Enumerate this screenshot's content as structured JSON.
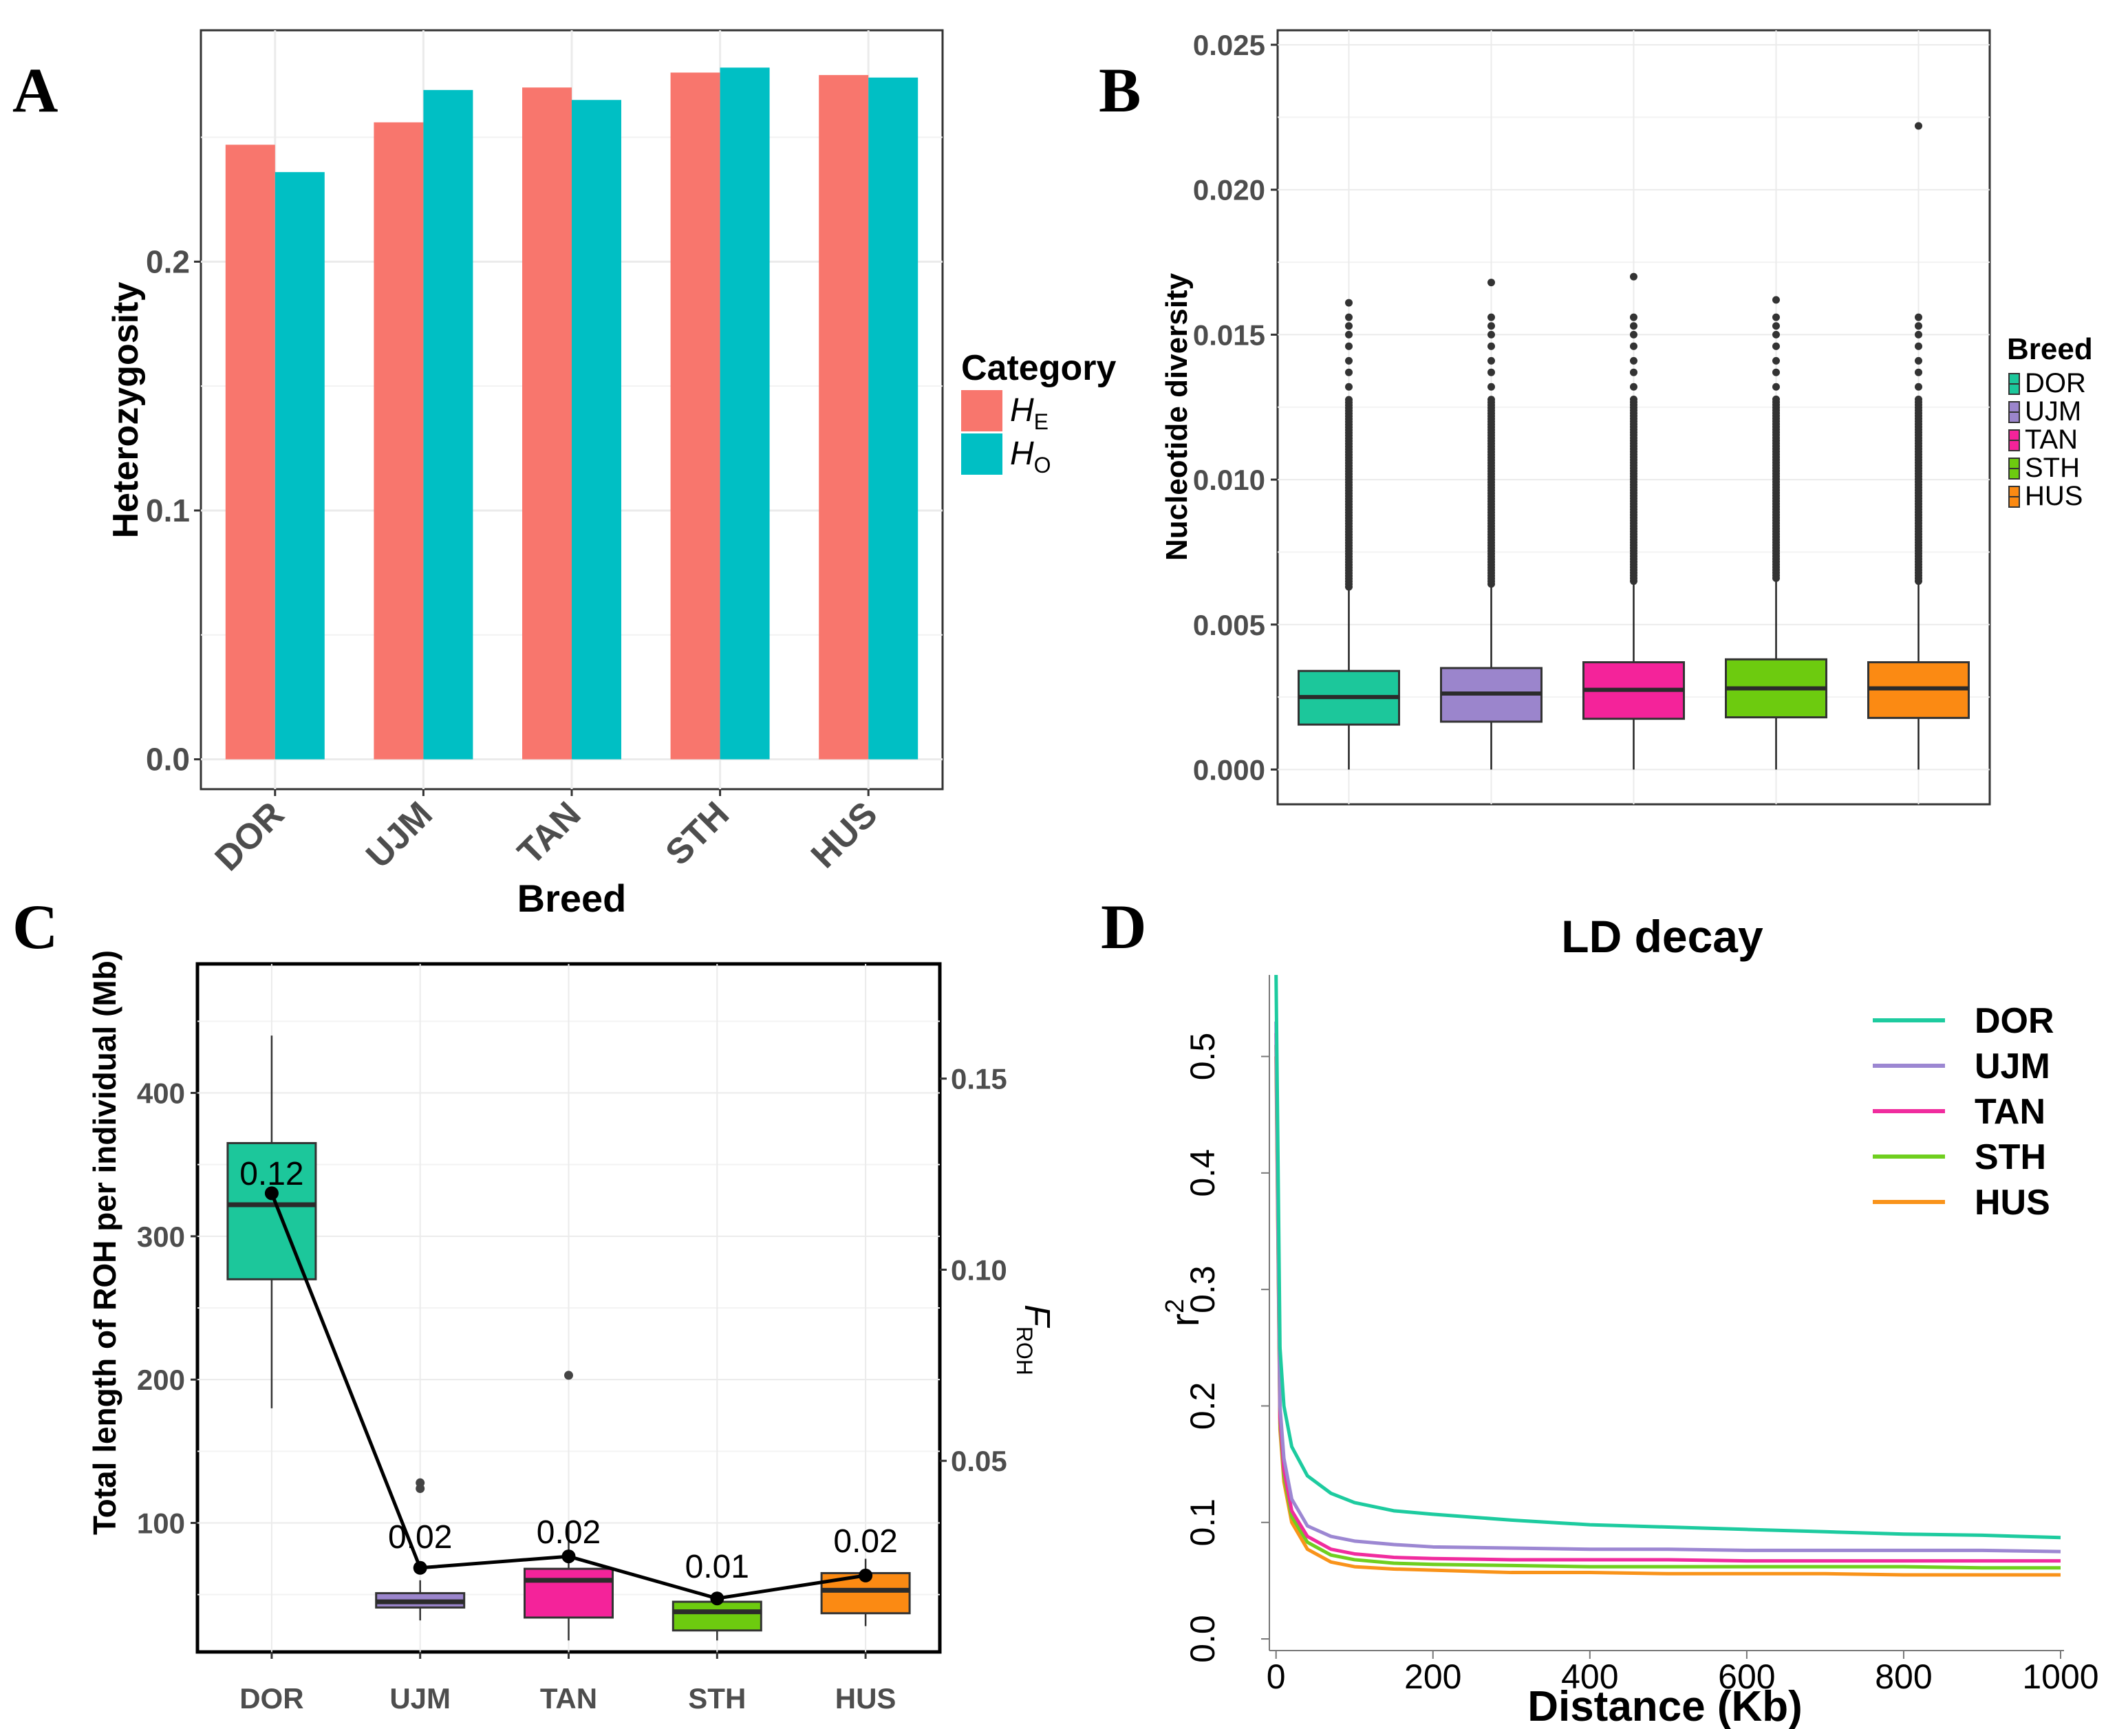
{
  "panels": {
    "A": "A",
    "B": "B",
    "C": "C",
    "D": "D"
  },
  "colors": {
    "he": "#F8766D",
    "ho": "#00BFC4",
    "DOR": "#1CC79B",
    "UJM": "#9B85CC",
    "TAN": "#F4239A",
    "STH": "#6DCB0F",
    "HUS": "#FB8A13",
    "ld_DOR": "#1DCB9F",
    "ld_UJM": "#9C87D2",
    "ld_TAN": "#F02C9E",
    "ld_STH": "#6FCF1F",
    "ld_HUS": "#F9931A"
  },
  "chart_data": [
    {
      "id": "A",
      "type": "bar",
      "title": "",
      "xlabel": "Breed",
      "ylabel": "Heterozygosity",
      "categories": [
        "DOR",
        "UJM",
        "TAN",
        "STH",
        "HUS"
      ],
      "series": [
        {
          "name": "H_E",
          "label_main": "H",
          "label_sub": "E",
          "values": [
            0.247,
            0.256,
            0.27,
            0.276,
            0.275
          ]
        },
        {
          "name": "H_O",
          "label_main": "H",
          "label_sub": "O",
          "values": [
            0.236,
            0.269,
            0.265,
            0.278,
            0.274
          ]
        }
      ],
      "ylim": [
        -0.012,
        0.293
      ],
      "yticks": [
        "0.0",
        "0.1",
        "0.2"
      ],
      "ytick_values": [
        0,
        0.1,
        0.2
      ],
      "legend_title": "Category",
      "legend_position": "right",
      "grid": true
    },
    {
      "id": "B",
      "type": "boxplot",
      "title": "",
      "xlabel": "",
      "ylabel": "Nucleotide diversity",
      "categories": [
        "DOR",
        "UJM",
        "TAN",
        "STH",
        "HUS"
      ],
      "boxes": [
        {
          "q1": 0.00155,
          "median": 0.0025,
          "q3": 0.0034,
          "whisker_low": 0.0,
          "whisker_high": 0.0063,
          "outlier_max": 0.0161
        },
        {
          "q1": 0.00165,
          "median": 0.00262,
          "q3": 0.0035,
          "whisker_low": 0.0,
          "whisker_high": 0.0064,
          "outlier_max": 0.0168
        },
        {
          "q1": 0.00175,
          "median": 0.00275,
          "q3": 0.0037,
          "whisker_low": 0.0,
          "whisker_high": 0.0065,
          "outlier_max": 0.017
        },
        {
          "q1": 0.0018,
          "median": 0.0028,
          "q3": 0.0038,
          "whisker_low": 0.0,
          "whisker_high": 0.0066,
          "outlier_max": 0.0162
        },
        {
          "q1": 0.00178,
          "median": 0.0028,
          "q3": 0.0037,
          "whisker_low": 0.0,
          "whisker_high": 0.0065,
          "outlier_max": 0.0222
        }
      ],
      "ylim": [
        -0.0012,
        0.0255
      ],
      "yticks": [
        "0.000",
        "0.005",
        "0.010",
        "0.015",
        "0.020",
        "0.025"
      ],
      "ytick_values": [
        0,
        0.005,
        0.01,
        0.015,
        0.02,
        0.025
      ],
      "legend_title": "Breed",
      "legend_position": "right",
      "grid": true
    },
    {
      "id": "C",
      "type": "boxplot",
      "title": "",
      "xlabel": "",
      "ylabel": "Total length of ROH per individual (Mb)",
      "y2label_main": "F",
      "y2label_sub": "ROH",
      "categories": [
        "DOR",
        "UJM",
        "TAN",
        "STH",
        "HUS"
      ],
      "boxes": [
        {
          "q1": 270,
          "median": 322,
          "q3": 365,
          "whisker_low": 180,
          "whisker_high": 440,
          "outliers": []
        },
        {
          "q1": 41,
          "median": 45,
          "q3": 51,
          "whisker_low": 32,
          "whisker_high": 60,
          "outliers": [
            124,
            128
          ]
        },
        {
          "q1": 34,
          "median": 60,
          "q3": 68,
          "whisker_low": 18,
          "whisker_high": 100,
          "outliers": [
            203
          ]
        },
        {
          "q1": 25,
          "median": 38,
          "q3": 45,
          "whisker_low": 18,
          "whisker_high": 48,
          "outliers": []
        },
        {
          "q1": 37,
          "median": 53,
          "q3": 65,
          "whisker_low": 28,
          "whisker_high": 75,
          "outliers": []
        }
      ],
      "froh": [
        0.12,
        0.022,
        0.025,
        0.014,
        0.02
      ],
      "froh_labels": [
        "0.12",
        "0.02",
        "0.02",
        "0.01",
        "0.02"
      ],
      "ylim": [
        10,
        490
      ],
      "yticks": [
        "100",
        "200",
        "300",
        "400"
      ],
      "ytick_values": [
        100,
        200,
        300,
        400
      ],
      "y2lim": [
        0.0,
        0.18
      ],
      "y2ticks": [
        "0.05",
        "0.10",
        "0.15"
      ],
      "y2tick_values": [
        0.05,
        0.1,
        0.15
      ],
      "grid": true
    },
    {
      "id": "D",
      "type": "line",
      "title": "LD decay",
      "xlabel": "Distance (Kb)",
      "ylabel_main": "r",
      "ylabel_sup": "2",
      "xlim": [
        -5,
        1000
      ],
      "ylim": [
        -0.01,
        0.57
      ],
      "xticks": [
        "0",
        "200",
        "400",
        "600",
        "800",
        "1000"
      ],
      "xtick_values": [
        0,
        200,
        400,
        600,
        800,
        1000
      ],
      "yticks": [
        "0.0",
        "0.1",
        "0.2",
        "0.3",
        "0.4",
        "0.5"
      ],
      "ytick_values": [
        0,
        0.1,
        0.2,
        0.3,
        0.4,
        0.5
      ],
      "series": [
        {
          "name": "DOR",
          "x": [
            0,
            5,
            10,
            20,
            40,
            70,
            100,
            150,
            200,
            300,
            400,
            500,
            600,
            700,
            800,
            900,
            1000
          ],
          "y": [
            0.57,
            0.25,
            0.2,
            0.165,
            0.14,
            0.125,
            0.117,
            0.11,
            0.107,
            0.102,
            0.098,
            0.096,
            0.094,
            0.092,
            0.09,
            0.089,
            0.087
          ]
        },
        {
          "name": "UJM",
          "x": [
            0,
            5,
            10,
            20,
            40,
            70,
            100,
            150,
            200,
            300,
            400,
            500,
            600,
            700,
            800,
            900,
            1000
          ],
          "y": [
            0.53,
            0.2,
            0.155,
            0.12,
            0.097,
            0.088,
            0.084,
            0.081,
            0.079,
            0.078,
            0.077,
            0.077,
            0.076,
            0.076,
            0.076,
            0.076,
            0.075
          ]
        },
        {
          "name": "TAN",
          "x": [
            0,
            5,
            10,
            20,
            40,
            70,
            100,
            150,
            200,
            300,
            400,
            500,
            600,
            700,
            800,
            900,
            1000
          ],
          "y": [
            0.52,
            0.19,
            0.145,
            0.11,
            0.088,
            0.077,
            0.073,
            0.07,
            0.069,
            0.068,
            0.068,
            0.068,
            0.067,
            0.067,
            0.067,
            0.067,
            0.067
          ]
        },
        {
          "name": "STH",
          "x": [
            0,
            5,
            10,
            20,
            40,
            70,
            100,
            150,
            200,
            300,
            400,
            500,
            600,
            700,
            800,
            900,
            1000
          ],
          "y": [
            0.51,
            0.185,
            0.14,
            0.105,
            0.083,
            0.072,
            0.068,
            0.065,
            0.064,
            0.063,
            0.062,
            0.062,
            0.062,
            0.062,
            0.062,
            0.061,
            0.061
          ]
        },
        {
          "name": "HUS",
          "x": [
            0,
            5,
            10,
            20,
            40,
            70,
            100,
            150,
            200,
            300,
            400,
            500,
            600,
            700,
            800,
            900,
            1000
          ],
          "y": [
            0.5,
            0.18,
            0.135,
            0.1,
            0.077,
            0.066,
            0.062,
            0.06,
            0.059,
            0.057,
            0.057,
            0.056,
            0.056,
            0.056,
            0.055,
            0.055,
            0.055
          ]
        }
      ],
      "legend_position": "top-right",
      "grid": false
    }
  ]
}
